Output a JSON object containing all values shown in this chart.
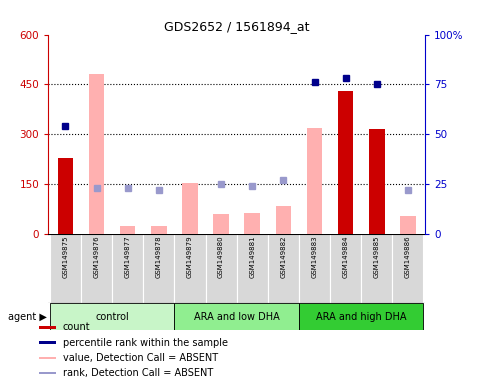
{
  "title": "GDS2652 / 1561894_at",
  "samples": [
    "GSM149875",
    "GSM149876",
    "GSM149877",
    "GSM149878",
    "GSM149879",
    "GSM149880",
    "GSM149881",
    "GSM149882",
    "GSM149883",
    "GSM149884",
    "GSM149885",
    "GSM149886"
  ],
  "bars_present": [
    230,
    null,
    null,
    null,
    null,
    null,
    null,
    null,
    null,
    430,
    315,
    null
  ],
  "bars_absent": [
    null,
    480,
    25,
    25,
    155,
    60,
    65,
    85,
    320,
    null,
    null,
    55
  ],
  "dots_present": [
    54,
    null,
    null,
    null,
    null,
    null,
    null,
    null,
    76,
    78,
    75,
    null
  ],
  "dots_absent": [
    null,
    23,
    23,
    22,
    null,
    25,
    24,
    27,
    null,
    null,
    null,
    22
  ],
  "groups": [
    {
      "label": "control",
      "start": 0,
      "end": 3,
      "color": "#c8f5c8"
    },
    {
      "label": "ARA and low DHA",
      "start": 4,
      "end": 7,
      "color": "#90ee90"
    },
    {
      "label": "ARA and high DHA",
      "start": 8,
      "end": 11,
      "color": "#33cc33"
    }
  ],
  "ylim_left": [
    0,
    600
  ],
  "ylim_right": [
    0,
    100
  ],
  "yticks_left": [
    0,
    150,
    300,
    450,
    600
  ],
  "yticks_right": [
    0,
    25,
    50,
    75,
    100
  ],
  "yticklabels_left": [
    "0",
    "150",
    "300",
    "450",
    "600"
  ],
  "yticklabels_right": [
    "0",
    "25",
    "50",
    "75",
    "100%"
  ],
  "left_axis_color": "#cc0000",
  "right_axis_color": "#0000cc",
  "bar_color_present": "#cc0000",
  "bar_color_absent": "#ffb0b0",
  "dot_color_present": "#00008b",
  "dot_color_absent": "#9999cc",
  "background_color": "#ffffff",
  "agent_label": "agent",
  "legend_items": [
    {
      "color": "#cc0000",
      "label": "count"
    },
    {
      "color": "#00008b",
      "label": "percentile rank within the sample"
    },
    {
      "color": "#ffb0b0",
      "label": "value, Detection Call = ABSENT"
    },
    {
      "color": "#9999cc",
      "label": "rank, Detection Call = ABSENT"
    }
  ]
}
